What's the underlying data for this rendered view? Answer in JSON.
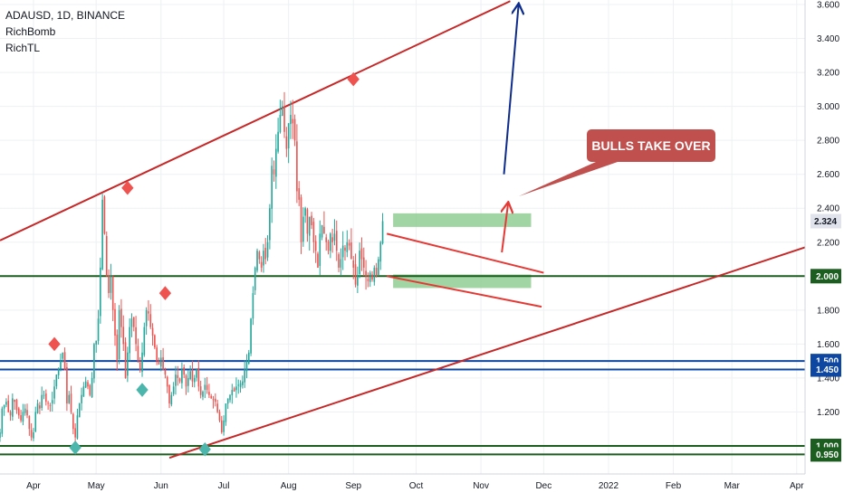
{
  "legend": {
    "symbol": "ADAUSD, 1D, BINANCE",
    "indicator1": "RichBomb",
    "indicator2": "RichTL"
  },
  "chart_data": {
    "type": "candlestick",
    "y_axis": {
      "ticks": [
        "3.600",
        "3.400",
        "3.200",
        "3.000",
        "2.800",
        "2.600",
        "2.400",
        "2.200",
        "2.000",
        "1.800",
        "1.600",
        "1.400",
        "1.200",
        "1.000"
      ],
      "tick_values": [
        3.6,
        3.4,
        3.2,
        3.0,
        2.8,
        2.6,
        2.4,
        2.2,
        2.0,
        1.8,
        1.6,
        1.4,
        1.2,
        1.0
      ],
      "ylim": [
        0.92,
        3.62
      ],
      "current_price": "2.324",
      "current_price_value": 2.324
    },
    "x_axis": {
      "labels": [
        "Apr",
        "May",
        "Jun",
        "Jul",
        "Aug",
        "Sep",
        "Oct",
        "Nov",
        "Dec",
        "2022",
        "Feb",
        "Mar",
        "Apr"
      ],
      "label_dates": [
        "2021-04-01",
        "2021-05-01",
        "2021-06-01",
        "2021-07-01",
        "2021-08-01",
        "2021-09-01",
        "2021-10-01",
        "2021-11-01",
        "2021-12-01",
        "2022-01-01",
        "2022-02-01",
        "2022-03-01",
        "2022-04-01"
      ],
      "xlim": [
        "2021-03-16",
        "2022-04-05"
      ]
    },
    "horizontal_levels": [
      {
        "value": 2.0,
        "label": "2.000",
        "color": "#1b5e20"
      },
      {
        "value": 1.5,
        "label": "1.500",
        "color": "#0d47a1"
      },
      {
        "value": 1.45,
        "label": "1.450",
        "color": "#0d47a1"
      },
      {
        "value": 1.0,
        "label": "1.000",
        "color": "#1b5e20"
      },
      {
        "value": 0.95,
        "label": "0.950",
        "color": "#1b5e20"
      }
    ],
    "zones": [
      {
        "from": "2021-09-20",
        "to": "2021-11-25",
        "low": 2.29,
        "high": 2.37,
        "color": "#81c784"
      },
      {
        "from": "2021-09-20",
        "to": "2021-11-25",
        "low": 1.93,
        "high": 2.01,
        "color": "#81c784"
      }
    ],
    "trendlines": [
      {
        "from": [
          "2021-03-16",
          2.21
        ],
        "to": [
          "2021-11-15",
          3.62
        ],
        "color": "#c62828"
      },
      {
        "from": [
          "2021-06-05",
          0.93
        ],
        "to": [
          "2022-04-05",
          2.17
        ],
        "color": "#c62828"
      },
      {
        "from": [
          "2021-09-17",
          2.25
        ],
        "to": [
          "2021-12-01",
          2.02
        ],
        "color": "#e53935"
      },
      {
        "from": [
          "2021-09-17",
          2.0
        ],
        "to": [
          "2021-11-30",
          1.82
        ],
        "color": "#e53935"
      }
    ],
    "arrows": [
      {
        "from": [
          "2021-11-11",
          2.14
        ],
        "to": [
          "2021-11-14",
          2.43
        ],
        "color": "#e53935"
      },
      {
        "from": [
          "2021-11-12",
          2.6
        ],
        "to": [
          "2021-11-19",
          3.6
        ],
        "color": "#0d2c8c"
      }
    ],
    "markers": [
      {
        "date": "2021-04-11",
        "price": 1.6,
        "kind": "sell"
      },
      {
        "date": "2021-05-16",
        "price": 2.52,
        "kind": "sell"
      },
      {
        "date": "2021-06-03",
        "price": 1.9,
        "kind": "sell"
      },
      {
        "date": "2021-09-01",
        "price": 3.16,
        "kind": "sell"
      },
      {
        "date": "2021-04-21",
        "price": 0.99,
        "kind": "buy"
      },
      {
        "date": "2021-05-23",
        "price": 1.33,
        "kind": "buy"
      },
      {
        "date": "2021-06-22",
        "price": 0.98,
        "kind": "buy"
      }
    ],
    "callout": {
      "text": "BULLS TAKE OVER",
      "date": "2021-11-19",
      "price": 2.47,
      "color": "#c0504d"
    },
    "series": [
      {
        "dates_start": "2021-03-16",
        "values": [
          1.08,
          1.22,
          1.24,
          1.26,
          1.2,
          1.18,
          1.28,
          1.26,
          1.21,
          1.18,
          1.15,
          1.2,
          1.22,
          1.18,
          1.1,
          1.05,
          1.08,
          1.2,
          1.25,
          1.22,
          1.3,
          1.3,
          1.26,
          1.25,
          1.24,
          1.27,
          1.35,
          1.42,
          1.45,
          1.5,
          1.55,
          1.45,
          1.25,
          1.3,
          1.2,
          1.1,
          1.05,
          1.18,
          1.25,
          1.3,
          1.35,
          1.38,
          1.35,
          1.3,
          1.4,
          1.6,
          1.62,
          1.75,
          2.05,
          2.45,
          2.25,
          2.0,
          1.9,
          2.0,
          1.8,
          1.65,
          1.5,
          1.8,
          1.7,
          1.6,
          1.4,
          1.55,
          1.7,
          1.75,
          1.7,
          1.6,
          1.5,
          1.45,
          1.55,
          1.7,
          1.8,
          1.78,
          1.7,
          1.65,
          1.58,
          1.5,
          1.48,
          1.52,
          1.45,
          1.42,
          1.35,
          1.25,
          1.3,
          1.35,
          1.42,
          1.4,
          1.38,
          1.45,
          1.42,
          1.35,
          1.4,
          1.44,
          1.38,
          1.4,
          1.45,
          1.35,
          1.3,
          1.32,
          1.36,
          1.33,
          1.3,
          1.28,
          1.27,
          1.26,
          1.2,
          1.15,
          1.08,
          1.15,
          1.25,
          1.28,
          1.3,
          1.33,
          1.32,
          1.35,
          1.36,
          1.37,
          1.38,
          1.45,
          1.5,
          1.55,
          1.75,
          1.9,
          2.05,
          2.15,
          2.1,
          2.05,
          2.15,
          2.1,
          2.2,
          2.4,
          2.65,
          2.6,
          2.75,
          2.85,
          2.95,
          3.0,
          2.85,
          2.75,
          2.9,
          2.95,
          2.9,
          2.8,
          2.5,
          2.45,
          2.2,
          2.35,
          2.4,
          2.25,
          2.35,
          2.3,
          2.2,
          2.15,
          2.05,
          2.25,
          2.3,
          2.25,
          2.2,
          2.15,
          2.25,
          2.2,
          2.25,
          2.15,
          2.05,
          2.1,
          2.18,
          2.15,
          2.2,
          2.18,
          2.1,
          2.05,
          1.95,
          2.0,
          2.15,
          2.1,
          2.05,
          2.0,
          1.97,
          2.02,
          1.98,
          2.05,
          2.0,
          2.1,
          2.2,
          2.324
        ]
      }
    ]
  },
  "colors": {
    "up": "#26a69a",
    "down": "#ef5350",
    "grid": "#eef0f3",
    "axis": "#d1d4dc",
    "price_tag": "#e0e3eb"
  }
}
